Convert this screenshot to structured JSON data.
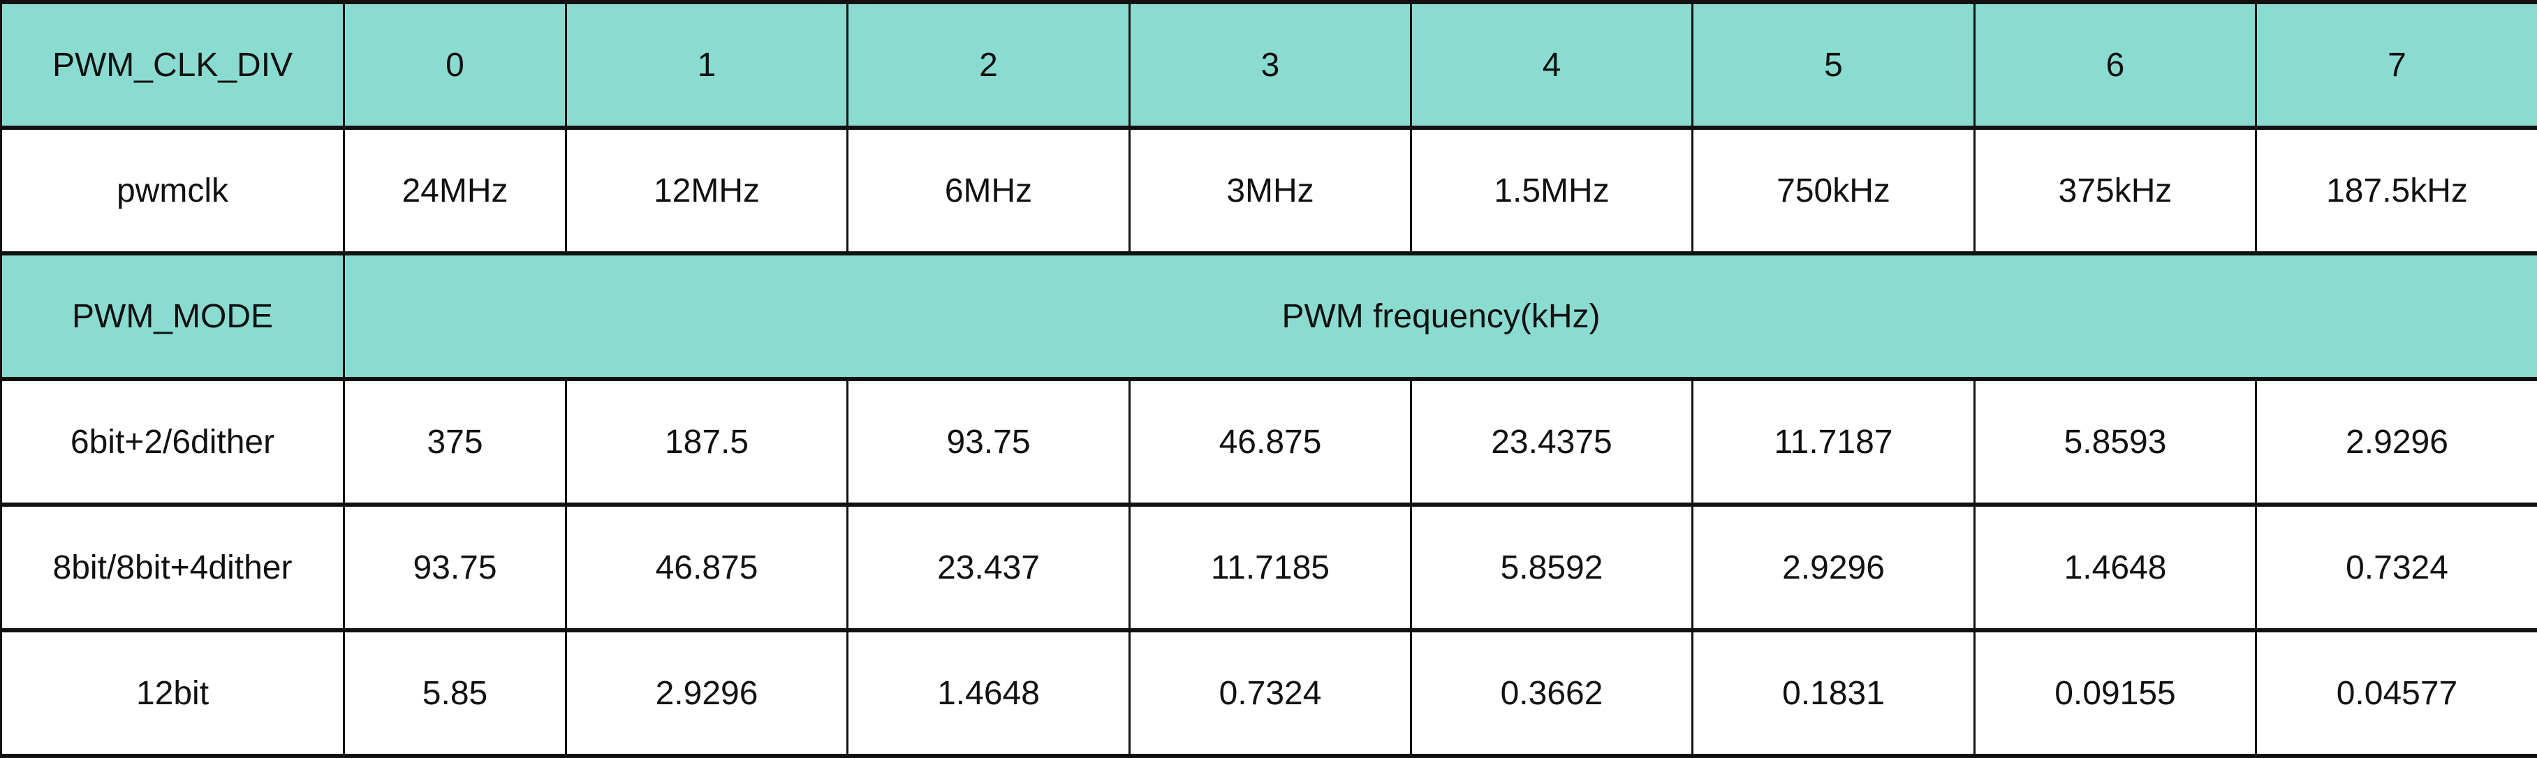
{
  "colors": {
    "header_fill": "#8adcd0",
    "border": "#111111"
  },
  "table": {
    "div_row": {
      "label": "PWM_CLK_DIV",
      "values": [
        "0",
        "1",
        "2",
        "3",
        "4",
        "5",
        "6",
        "7"
      ]
    },
    "clk_row": {
      "label": "pwmclk",
      "values": [
        "24MHz",
        "12MHz",
        "6MHz",
        "3MHz",
        "1.5MHz",
        "750kHz",
        "375kHz",
        "187.5kHz"
      ]
    },
    "mode_row": {
      "label": "PWM_MODE",
      "span_label": "PWM frequency(kHz)"
    },
    "rows": [
      {
        "label": "6bit+2/6dither",
        "values": [
          "375",
          "187.5",
          "93.75",
          "46.875",
          "23.4375",
          "11.7187",
          "5.8593",
          "2.9296"
        ]
      },
      {
        "label": "8bit/8bit+4dither",
        "values": [
          "93.75",
          "46.875",
          "23.437",
          "11.7185",
          "5.8592",
          "2.9296",
          "1.4648",
          "0.7324"
        ]
      },
      {
        "label": "12bit",
        "values": [
          "5.85",
          "2.9296",
          "1.4648",
          "0.7324",
          "0.3662",
          "0.1831",
          "0.09155",
          "0.04577"
        ]
      }
    ]
  }
}
